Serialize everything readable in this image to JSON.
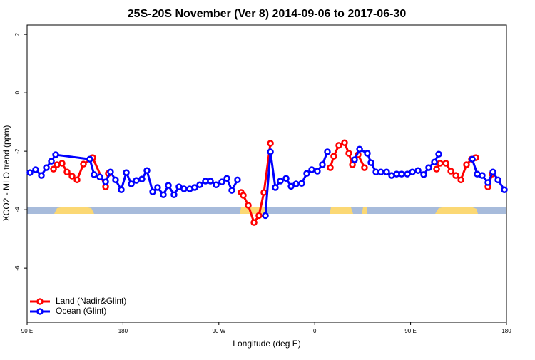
{
  "chart_data": {
    "type": "line",
    "title": "25S-20S November (Ver 8)   2014-09-06 to 2017-06-30",
    "x_label": "Longitude (deg E)",
    "y_label": "XCO2 - MLO trend (ppm)",
    "xlim": [
      90,
      540
    ],
    "ylim": [
      -7.85,
      2.32
    ],
    "xticks": [
      {
        "value": 90,
        "label": "90 E"
      },
      {
        "value": 180,
        "label": "180"
      },
      {
        "value": 270,
        "label": "90 W"
      },
      {
        "value": 360,
        "label": "0"
      },
      {
        "value": 450,
        "label": "90 E"
      },
      {
        "value": 540,
        "label": "180"
      }
    ],
    "yticks": [
      2,
      0,
      -2,
      -4,
      -6
    ],
    "legend": "bottom-left",
    "series": [
      {
        "name": "Land (Nadir&Glint)",
        "color": "#ff0000",
        "x": [
          114.8,
          118.1,
          122.8,
          127.5,
          132.2,
          136.9,
          142.9,
          151.6,
          163.7,
          166.3,
          null,
          290.9,
          292.9,
          297.6,
          303.0,
          307.6,
          312.3,
          318.4,
          null,
          374.6,
          377.9,
          382.6,
          388.0,
          392.0,
          395.4,
          400.7,
          406.7,
          null,
          474.4,
          477.7,
          483.1,
          487.8,
          492.5,
          497.2,
          502.5,
          507.2,
          511.2,
          null,
          522.6,
          526.6
        ],
        "values": [
          -2.61,
          -2.46,
          -2.41,
          -2.71,
          -2.85,
          -2.98,
          -2.44,
          -2.22,
          -3.22,
          -2.76,
          null,
          -3.41,
          -3.51,
          -3.85,
          -4.44,
          -4.2,
          -3.41,
          -1.73,
          null,
          -2.56,
          -2.17,
          -1.8,
          -1.71,
          -2.07,
          -2.46,
          -2.12,
          -2.56,
          null,
          -2.61,
          -2.41,
          -2.41,
          -2.68,
          -2.83,
          -2.98,
          -2.46,
          -2.27,
          -2.22,
          null,
          -3.22,
          -2.78
        ]
      },
      {
        "name": "Ocean (Glint)",
        "color": "#0000ff",
        "x": [
          92.7,
          98.0,
          103.4,
          108.1,
          112.8,
          116.8,
          148.9,
          152.9,
          158.3,
          163.7,
          168.3,
          173.0,
          178.4,
          183.1,
          187.8,
          192.5,
          197.8,
          202.5,
          207.9,
          212.5,
          217.9,
          222.6,
          227.9,
          232.6,
          237.3,
          242.7,
          247.4,
          252.1,
          257.4,
          262.1,
          267.5,
          272.8,
          277.5,
          282.2,
          287.5,
          null,
          313.7,
          318.4,
          323.0,
          327.7,
          333.1,
          337.8,
          342.5,
          347.8,
          352.5,
          357.2,
          362.5,
          367.2,
          371.9,
          null,
          397.4,
          402.1,
          409.4,
          412.8,
          417.5,
          422.1,
          427.5,
          432.2,
          436.9,
          441.6,
          446.9,
          451.6,
          457.0,
          462.3,
          467.0,
          472.4,
          476.4,
          null,
          507.9,
          512.5,
          517.2,
          522.6,
          527.3,
          532.0,
          538.0
        ],
        "values": [
          -2.73,
          -2.63,
          -2.83,
          -2.56,
          -2.34,
          -2.12,
          -2.27,
          -2.8,
          -2.88,
          -3.05,
          -2.71,
          -2.98,
          -3.32,
          -2.73,
          -3.12,
          -3.0,
          -2.95,
          -2.66,
          -3.39,
          -3.24,
          -3.49,
          -3.17,
          -3.49,
          -3.22,
          -3.29,
          -3.29,
          -3.24,
          -3.15,
          -3.02,
          -3.02,
          -3.15,
          -3.05,
          -2.93,
          -3.34,
          -2.98,
          null,
          -4.2,
          -2.02,
          -3.24,
          -3.02,
          -2.93,
          -3.2,
          -3.12,
          -3.1,
          -2.76,
          -2.63,
          -2.68,
          -2.46,
          -2.02,
          null,
          -2.29,
          -1.93,
          -2.07,
          -2.39,
          -2.71,
          -2.71,
          -2.71,
          -2.83,
          -2.78,
          -2.78,
          -2.78,
          -2.71,
          -2.66,
          -2.8,
          -2.56,
          -2.37,
          -2.1,
          null,
          -2.27,
          -2.78,
          -2.83,
          -3.07,
          -2.71,
          -2.98,
          -3.32
        ]
      }
    ]
  }
}
